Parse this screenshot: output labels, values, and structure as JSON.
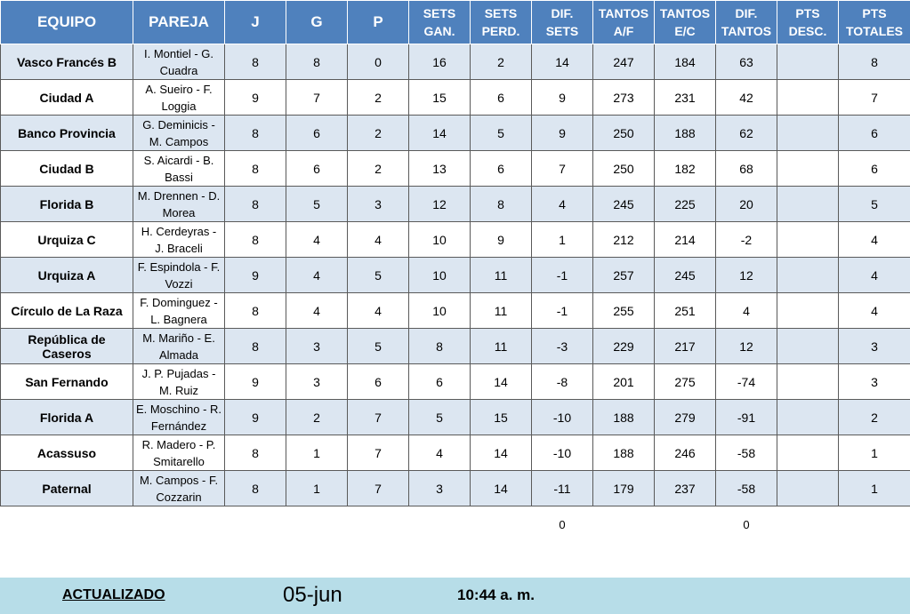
{
  "headers": [
    "EQUIPO",
    "PAREJA",
    "J",
    "G",
    "P",
    "SETS GAN.",
    "SETS PERD.",
    "DIF. SETS",
    "TANTOS A/F",
    "TANTOS E/C",
    "DIF. TANTOS",
    "PTS DESC.",
    "PTS TOTALES"
  ],
  "rows": [
    [
      "Vasco Francés B",
      "I. Montiel - G. Cuadra",
      "8",
      "8",
      "0",
      "16",
      "2",
      "14",
      "247",
      "184",
      "63",
      "",
      "8"
    ],
    [
      "Ciudad A",
      "A. Sueiro - F. Loggia",
      "9",
      "7",
      "2",
      "15",
      "6",
      "9",
      "273",
      "231",
      "42",
      "",
      "7"
    ],
    [
      "Banco Provincia",
      "G. Deminicis - M. Campos",
      "8",
      "6",
      "2",
      "14",
      "5",
      "9",
      "250",
      "188",
      "62",
      "",
      "6"
    ],
    [
      "Ciudad B",
      "S. Aicardi - B. Bassi",
      "8",
      "6",
      "2",
      "13",
      "6",
      "7",
      "250",
      "182",
      "68",
      "",
      "6"
    ],
    [
      "Florida B",
      "M. Drennen - D. Morea",
      "8",
      "5",
      "3",
      "12",
      "8",
      "4",
      "245",
      "225",
      "20",
      "",
      "5"
    ],
    [
      "Urquiza C",
      "H. Cerdeyras - J. Braceli",
      "8",
      "4",
      "4",
      "10",
      "9",
      "1",
      "212",
      "214",
      "-2",
      "",
      "4"
    ],
    [
      "Urquiza A",
      "F. Espindola - F. Vozzi",
      "9",
      "4",
      "5",
      "10",
      "11",
      "-1",
      "257",
      "245",
      "12",
      "",
      "4"
    ],
    [
      "Círculo de La Raza",
      "F. Dominguez - L. Bagnera",
      "8",
      "4",
      "4",
      "10",
      "11",
      "-1",
      "255",
      "251",
      "4",
      "",
      "4"
    ],
    [
      "República de Caseros",
      "M. Mariño - E. Almada",
      "8",
      "3",
      "5",
      "8",
      "11",
      "-3",
      "229",
      "217",
      "12",
      "",
      "3"
    ],
    [
      "San Fernando",
      "J. P. Pujadas - M. Ruiz",
      "9",
      "3",
      "6",
      "6",
      "14",
      "-8",
      "201",
      "275",
      "-74",
      "",
      "3"
    ],
    [
      "Florida A",
      "E. Moschino - R. Fernández",
      "9",
      "2",
      "7",
      "5",
      "15",
      "-10",
      "188",
      "279",
      "-91",
      "",
      "2"
    ],
    [
      "Acassuso",
      "R. Madero - P. Smitarello",
      "8",
      "1",
      "7",
      "4",
      "14",
      "-10",
      "188",
      "246",
      "-58",
      "",
      "1"
    ],
    [
      "Paternal",
      "M. Campos - F. Cozzarin",
      "8",
      "1",
      "7",
      "3",
      "14",
      "-11",
      "179",
      "237",
      "-58",
      "",
      "1"
    ]
  ],
  "totals": {
    "dif_sets": "0",
    "dif_tantos": "0"
  },
  "footer": {
    "label": "ACTUALIZADO",
    "date": "05-jun",
    "time": "10:44 a. m."
  },
  "colors": {
    "header_bg": "#4f81bd",
    "band": "#dce6f1",
    "footer_bg": "#b7dde8"
  }
}
